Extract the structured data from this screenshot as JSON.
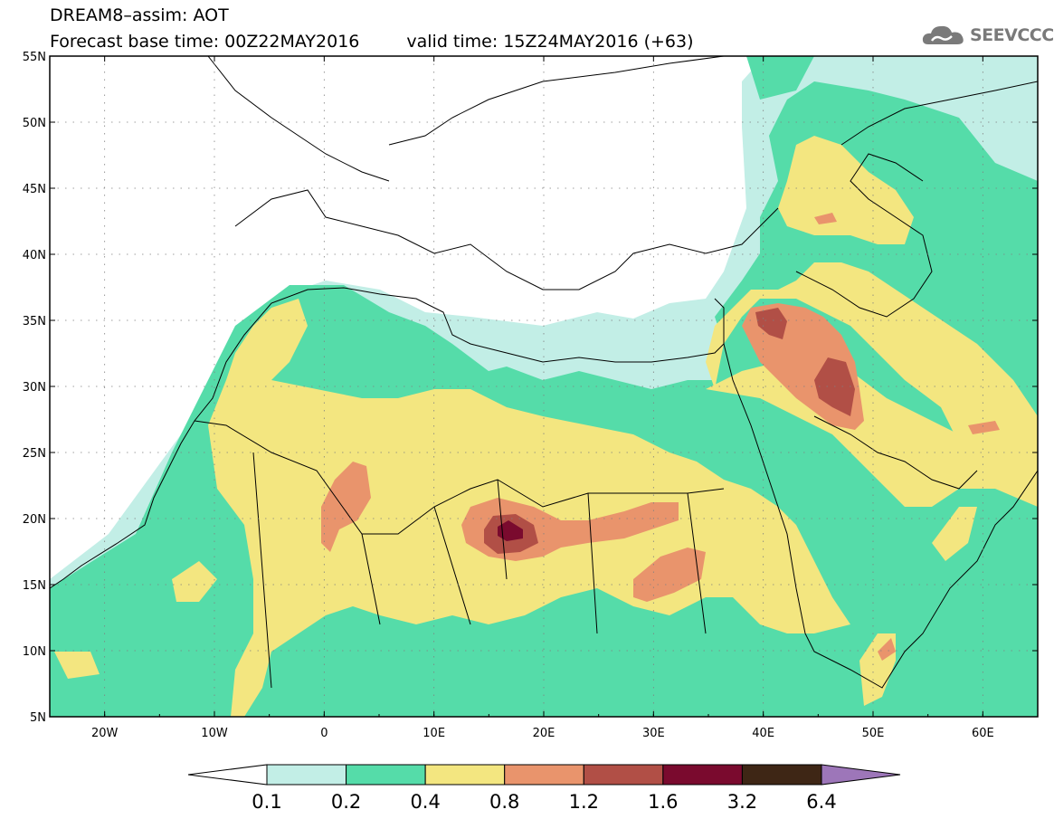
{
  "title": {
    "line1": "DREAM8–assim: AOT",
    "forecast_base": "Forecast base time: 00Z22MAY2016",
    "valid_time": "valid time: 15Z24MAY2016 (+63)"
  },
  "logo": {
    "name": "cloud-logo-icon",
    "text": "SEEVCCC"
  },
  "map": {
    "lon_range": [
      -25,
      65
    ],
    "lat_range": [
      5,
      55
    ],
    "x_ticks": [
      {
        "lon": -20,
        "label": "20W"
      },
      {
        "lon": -10,
        "label": "10W"
      },
      {
        "lon": 0,
        "label": "0"
      },
      {
        "lon": 10,
        "label": "10E"
      },
      {
        "lon": 20,
        "label": "20E"
      },
      {
        "lon": 30,
        "label": "30E"
      },
      {
        "lon": 40,
        "label": "40E"
      },
      {
        "lon": 50,
        "label": "50E"
      },
      {
        "lon": 60,
        "label": "60E"
      }
    ],
    "y_ticks": [
      {
        "lat": 5,
        "label": "5N"
      },
      {
        "lat": 10,
        "label": "10N"
      },
      {
        "lat": 15,
        "label": "15N"
      },
      {
        "lat": 20,
        "label": "20N"
      },
      {
        "lat": 25,
        "label": "25N"
      },
      {
        "lat": 30,
        "label": "30N"
      },
      {
        "lat": 35,
        "label": "35N"
      },
      {
        "lat": 40,
        "label": "40N"
      },
      {
        "lat": 45,
        "label": "45N"
      },
      {
        "lat": 50,
        "label": "50N"
      },
      {
        "lat": 55,
        "label": "55N"
      }
    ],
    "gridlines": "dotted"
  },
  "colorbar": {
    "levels": [
      "0.1",
      "0.2",
      "0.4",
      "0.8",
      "1.2",
      "1.6",
      "3.2",
      "6.4"
    ],
    "colors": [
      "#ffffff",
      "#c2eee6",
      "#55dca9",
      "#f3e680",
      "#e9946c",
      "#b14f46",
      "#7a0a2e",
      "#3e2615",
      "#9d76b9"
    ]
  }
}
